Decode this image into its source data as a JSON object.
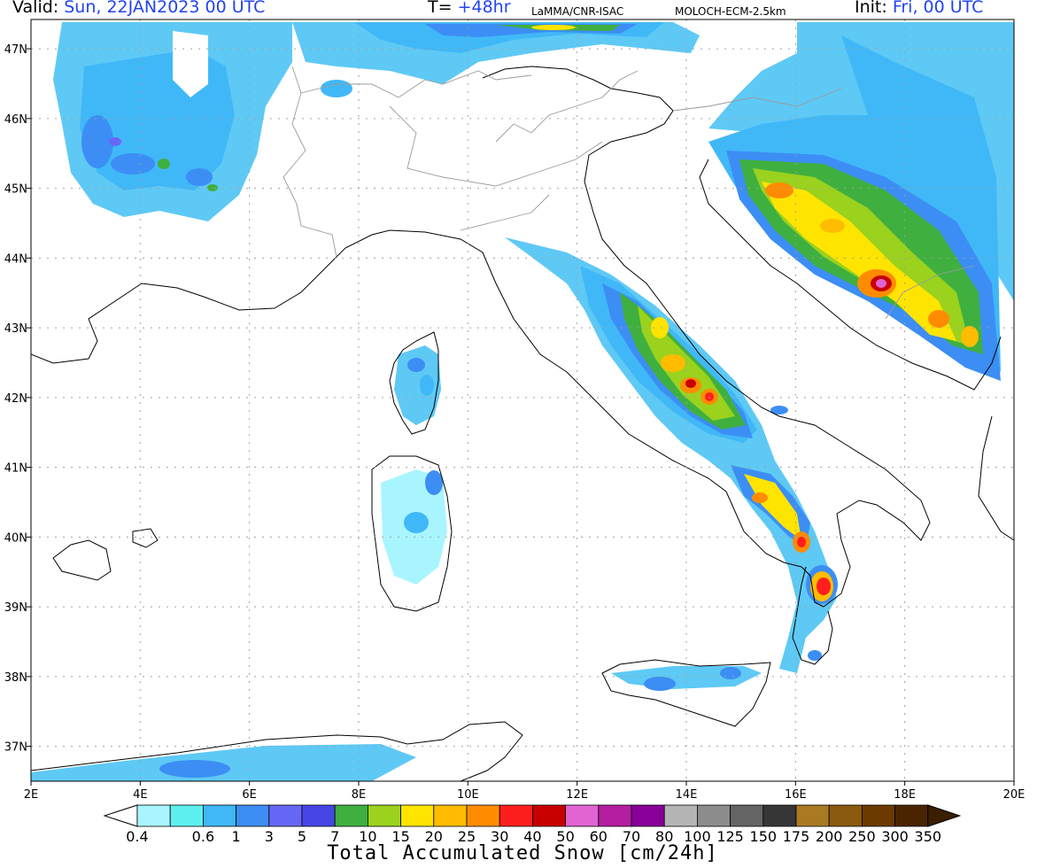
{
  "header": {
    "valid_label": "Valid:",
    "valid_value": "Sun, 22JAN2023   00 UTC",
    "t_label": "T=",
    "t_value": "+48hr",
    "org": "LaMMA/CNR-ISAC",
    "model": "MOLOCH-ECM-2.5km",
    "init_label": "Init:",
    "init_value": "Fri, 00 UTC"
  },
  "axes": {
    "lon_labels": [
      "2E",
      "4E",
      "6E",
      "8E",
      "10E",
      "12E",
      "14E",
      "16E",
      "18E",
      "20E"
    ],
    "lat_labels": [
      "47N",
      "46N",
      "45N",
      "44N",
      "43N",
      "42N",
      "41N",
      "40N",
      "39N",
      "38N",
      "37N"
    ]
  },
  "legend": {
    "title": "Total Accumulated Snow [cm/24h]",
    "levels": [
      "0.4",
      "0.6",
      "1",
      "3",
      "5",
      "7",
      "10",
      "15",
      "20",
      "25",
      "30",
      "40",
      "50",
      "60",
      "70",
      "80",
      "100",
      "125",
      "150",
      "175",
      "200",
      "250",
      "300",
      "350"
    ],
    "colors": [
      "#a8f5ff",
      "#5ef0f0",
      "#40b8f8",
      "#3c8ef4",
      "#6767f5",
      "#4646e6",
      "#3fb03f",
      "#9ad21e",
      "#ffe400",
      "#ffbc00",
      "#ff8c00",
      "#ff1e1e",
      "#c80000",
      "#e164d2",
      "#b41ea0",
      "#880099",
      "#b4b4b4",
      "#8c8c8c",
      "#646464",
      "#363636",
      "#aa7a22",
      "#8a5a10",
      "#6a3a00",
      "#4a2400"
    ]
  },
  "map_style": {
    "background": "#ffffff",
    "coast_color": "#000000",
    "border_color": "#9a9a9a",
    "grid_color": "#a0a0a0"
  }
}
